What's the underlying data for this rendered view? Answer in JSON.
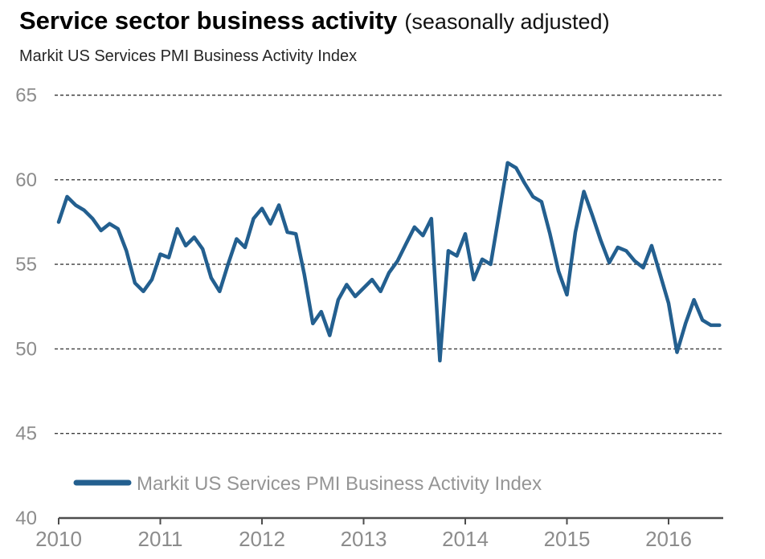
{
  "header": {
    "title": "Service sector business activity",
    "title_suffix": "(seasonally adjusted)",
    "subtitle": "Markit US Services PMI Business Activity Index"
  },
  "legend": {
    "label": "Markit US Services PMI Business Activity Index"
  },
  "colors": {
    "line": "#235f8f",
    "tick_label": "#8c8c8c",
    "legend_text": "#959595",
    "gridline": "#3d3d3d",
    "axis": "#4d4d4d",
    "title": "#000000",
    "subtitle": "#262626"
  },
  "chart_data": {
    "type": "line",
    "title": "Service sector business activity (seasonally adjusted)",
    "subtitle": "Markit US Services PMI Business Activity Index",
    "xlabel": "",
    "ylabel": "Markit US Services PMI Business Activity Index",
    "x_start": "2010-01",
    "x_end": "2016-07",
    "frequency": "monthly",
    "x_ticks": [
      "2010",
      "2011",
      "2012",
      "2013",
      "2014",
      "2015",
      "2016"
    ],
    "y_ticks": [
      40,
      45,
      50,
      55,
      60,
      65
    ],
    "ylim": [
      40,
      65
    ],
    "grid": "horizontal-dashed",
    "legend_position": "bottom",
    "series": [
      {
        "name": "Markit US Services PMI Business Activity Index",
        "color": "#235f8f",
        "values": [
          57.5,
          59.0,
          58.5,
          58.2,
          57.7,
          57.0,
          57.4,
          57.1,
          55.8,
          53.9,
          53.4,
          54.1,
          55.6,
          55.4,
          57.1,
          56.1,
          56.6,
          55.9,
          54.2,
          53.4,
          55.0,
          56.5,
          56.0,
          57.7,
          58.3,
          57.4,
          58.5,
          56.9,
          56.8,
          54.4,
          51.5,
          52.2,
          50.8,
          52.9,
          53.8,
          53.1,
          53.6,
          54.1,
          53.4,
          54.5,
          55.2,
          56.2,
          57.2,
          56.7,
          57.7,
          49.3,
          55.8,
          55.5,
          56.8,
          54.1,
          55.3,
          55.0,
          58.0,
          61.0,
          60.7,
          59.8,
          59.0,
          58.7,
          56.8,
          54.6,
          53.2,
          56.9,
          59.3,
          57.9,
          56.4,
          55.1,
          56.0,
          55.8,
          55.2,
          54.8,
          56.1,
          54.4,
          52.7,
          49.8,
          51.5,
          52.9,
          51.7,
          51.4,
          51.4
        ]
      }
    ]
  }
}
